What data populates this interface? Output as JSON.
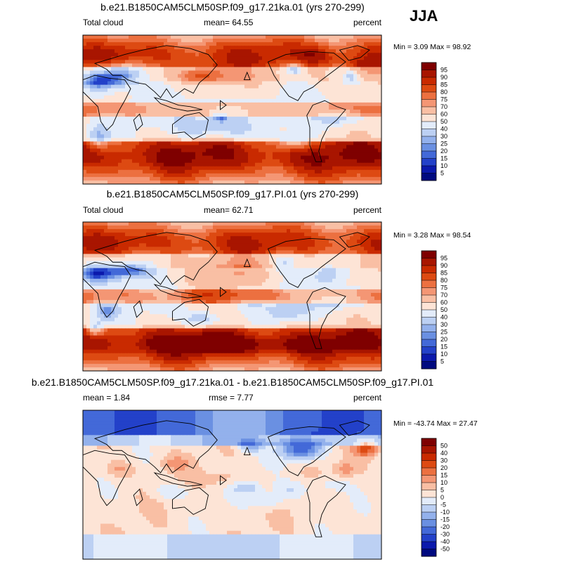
{
  "season": "JJA",
  "chart_data": [
    {
      "type": "heatmap",
      "title": "b.e21.B1850CAM5CLM50SP.f09_g17.21ka.01 (yrs 270-299)",
      "left_label": "Total cloud",
      "center_label": "mean=  64.55",
      "units": "percent",
      "minmax": "Min =   3.09 Max =  98.92",
      "colorbar": {
        "levels": [
          "95",
          "90",
          "85",
          "80",
          "75",
          "70",
          "60",
          "50",
          "40",
          "30",
          "25",
          "20",
          "15",
          "10",
          "5"
        ],
        "colors": [
          "#7f0000",
          "#a81500",
          "#c92a00",
          "#dd4a12",
          "#ec7040",
          "#f49674",
          "#f9bfa4",
          "#fde4d6",
          "#e3ecfa",
          "#bcd0f3",
          "#93b1ec",
          "#6a90e2",
          "#4369d8",
          "#2341c9",
          "#0b19ac",
          "#000a80"
        ]
      },
      "field": {
        "type": "cloud",
        "mean": 64.55,
        "blobs": [
          [
            0.05,
            0.3,
            0.07,
            0.07,
            -45
          ],
          [
            0.13,
            0.27,
            0.07,
            0.07,
            -35
          ],
          [
            0.05,
            0.68,
            0.04,
            0.08,
            -25
          ],
          [
            0.47,
            0.5,
            0.17,
            0.06,
            -20
          ],
          [
            0.5,
            0.63,
            0.07,
            0.06,
            -20
          ],
          [
            0.38,
            0.62,
            0.07,
            0.06,
            -25
          ],
          [
            0.86,
            0.55,
            0.07,
            0.06,
            -20
          ],
          [
            0.71,
            0.72,
            0.06,
            0.05,
            -20
          ],
          [
            0.71,
            0.23,
            0.03,
            0.04,
            -25
          ],
          [
            0.9,
            0.28,
            0.03,
            0.04,
            -25
          ],
          [
            0.4,
            0.27,
            0.09,
            0.06,
            22
          ],
          [
            0.46,
            0.55,
            0.03,
            0.04,
            -25
          ],
          [
            0.78,
            0.14,
            0.06,
            0.08,
            10
          ],
          [
            0.93,
            0.22,
            0.05,
            0.06,
            12
          ]
        ]
      }
    },
    {
      "type": "heatmap",
      "title": "b.e21.B1850CAM5CLM50SP.f09_g17.PI.01 (yrs 270-299)",
      "left_label": "Total cloud",
      "center_label": "mean=  62.71",
      "units": "percent",
      "minmax": "Min =   3.28 Max =  98.54",
      "colorbar": {
        "levels": [
          "95",
          "90",
          "85",
          "80",
          "75",
          "70",
          "60",
          "50",
          "40",
          "30",
          "25",
          "20",
          "15",
          "10",
          "5"
        ],
        "colors": [
          "#7f0000",
          "#a81500",
          "#c92a00",
          "#dd4a12",
          "#ec7040",
          "#f49674",
          "#f9bfa4",
          "#fde4d6",
          "#e3ecfa",
          "#bcd0f3",
          "#93b1ec",
          "#6a90e2",
          "#4369d8",
          "#2341c9",
          "#0b19ac",
          "#000a80"
        ]
      },
      "field": {
        "type": "cloud",
        "mean": 62.71,
        "blobs": [
          [
            0.05,
            0.34,
            0.07,
            0.07,
            -48
          ],
          [
            0.16,
            0.32,
            0.07,
            0.06,
            -35
          ],
          [
            0.08,
            0.6,
            0.04,
            0.06,
            -25
          ],
          [
            0.04,
            0.72,
            0.03,
            0.05,
            -25
          ],
          [
            0.4,
            0.65,
            0.06,
            0.05,
            -25
          ],
          [
            0.68,
            0.6,
            0.07,
            0.05,
            -20
          ],
          [
            0.57,
            0.56,
            0.04,
            0.03,
            -12
          ],
          [
            0.86,
            0.52,
            0.08,
            0.06,
            -22
          ],
          [
            0.67,
            0.27,
            0.04,
            0.05,
            -20
          ],
          [
            0.82,
            0.35,
            0.05,
            0.07,
            -18
          ],
          [
            0.46,
            0.37,
            0.14,
            0.1,
            15
          ],
          [
            0.5,
            0.83,
            0.3,
            0.06,
            10
          ]
        ]
      }
    },
    {
      "type": "heatmap",
      "title": "b.e21.B1850CAM5CLM50SP.f09_g17.21ka.01 - b.e21.B1850CAM5CLM50SP.f09_g17.PI.01",
      "left_label": "mean =   1.84",
      "center_label": "rmse =   7.77",
      "units": "percent",
      "minmax": "Min = -43.74 Max =  27.47",
      "colorbar": {
        "levels": [
          "50",
          "40",
          "30",
          "20",
          "15",
          "10",
          "5",
          "0",
          "-5",
          "-10",
          "-15",
          "-20",
          "-30",
          "-40",
          "-50"
        ],
        "colors": [
          "#7f0000",
          "#a81500",
          "#c92a00",
          "#dd4a12",
          "#ec7040",
          "#f49674",
          "#f9bfa4",
          "#fde4d6",
          "#e3ecfa",
          "#bcd0f3",
          "#93b1ec",
          "#6a90e2",
          "#4369d8",
          "#2341c9",
          "#0b19ac",
          "#000a80"
        ]
      },
      "field": {
        "type": "diff",
        "mean": 1.84,
        "blobs": [
          [
            0.73,
            0.26,
            0.07,
            0.07,
            -28
          ],
          [
            0.56,
            0.24,
            0.04,
            0.04,
            -15
          ],
          [
            0.95,
            0.25,
            0.04,
            0.06,
            20
          ],
          [
            0.88,
            0.4,
            0.04,
            0.05,
            10
          ],
          [
            0.55,
            0.52,
            0.05,
            0.05,
            -10
          ],
          [
            0.7,
            0.53,
            0.06,
            0.06,
            -8
          ],
          [
            0.3,
            0.55,
            0.06,
            0.05,
            -8
          ],
          [
            0.12,
            0.4,
            0.05,
            0.05,
            8
          ],
          [
            0.47,
            0.46,
            0.06,
            0.05,
            6
          ],
          [
            0.82,
            0.5,
            0.06,
            0.06,
            -6
          ],
          [
            0.62,
            0.61,
            0.05,
            0.05,
            -10
          ],
          [
            0.31,
            0.36,
            0.05,
            0.05,
            8
          ]
        ]
      }
    }
  ]
}
